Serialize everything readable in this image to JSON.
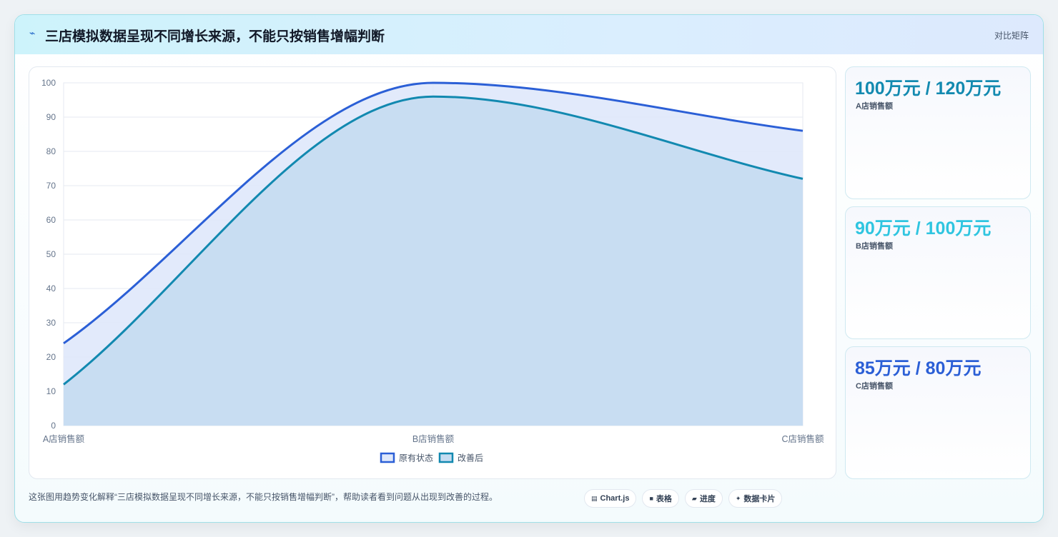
{
  "header": {
    "logo_icon": "⌁",
    "title": "三店模拟数据呈现不同增长来源，不能只按销售增幅判断",
    "tag": "对比矩阵"
  },
  "colors": {
    "series_original": "#2b5fd6",
    "series_improved": "#1289b0",
    "fill_original": "#dfe8fb",
    "fill_improved": "#c5dcf1",
    "card_a": "#138ab0",
    "card_b": "#2fc5e0",
    "card_c": "#2b5fd6"
  },
  "chart_data": {
    "type": "area",
    "categories": [
      "A店销售额",
      "B店销售额",
      "C店销售额"
    ],
    "series": [
      {
        "name": "原有状态",
        "values": [
          24,
          100,
          86
        ]
      },
      {
        "name": "改善后",
        "values": [
          12,
          96,
          72
        ]
      }
    ],
    "ylim": [
      0,
      100
    ],
    "yticks": [
      0,
      10,
      20,
      30,
      40,
      50,
      60,
      70,
      80,
      90,
      100
    ],
    "grid": true,
    "legend": "bottom"
  },
  "cards": [
    {
      "value": "100万元 / 120万元",
      "label": "A店销售额"
    },
    {
      "value": "90万元 / 100万元",
      "label": "B店销售额"
    },
    {
      "value": "85万元 / 80万元",
      "label": "C店销售额"
    }
  ],
  "footer": {
    "note": "这张图用趋势变化解释“三店模拟数据呈现不同增长来源，不能只按销售增幅判断”，帮助读者看到问题从出现到改善的过程。",
    "pills": [
      {
        "icon": "chart-icon",
        "glyph": "▤",
        "label": "Chart.js"
      },
      {
        "icon": "table-icon",
        "glyph": "■",
        "label": "表格"
      },
      {
        "icon": "progress-icon",
        "glyph": "▰",
        "label": "进度"
      },
      {
        "icon": "sparkle-icon",
        "glyph": "✦",
        "label": "数据卡片"
      }
    ]
  }
}
